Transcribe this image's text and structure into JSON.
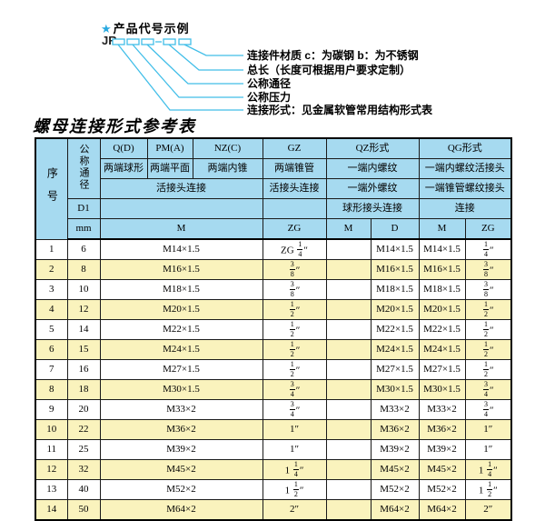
{
  "colors": {
    "accent_cyan": "#41bee8",
    "star_blue": "#29a9e0",
    "header_blue": "#a6daf0",
    "row_yellow": "#faf3bd"
  },
  "diagram": {
    "star": "★",
    "heading": "产品代号示例",
    "prefix": "JR",
    "labels": [
      "连接件材质  c：为碳钢  b：为不锈钢",
      "总长（长度可根据用户要求定制）",
      "公称通径",
      "公称压力",
      "连接形式：见金属软管常用结构形式表"
    ]
  },
  "table": {
    "title": "螺母连接形式参考表",
    "header": {
      "col_no": "序号",
      "col_dn": "公称通径",
      "d1": "D1",
      "mm": "mm",
      "q": "Q(D)",
      "q_desc": "两端球形",
      "pm": "PM(A)",
      "pm_desc": "两端平面",
      "nz": "NZ(C)",
      "nz_desc": "两端内锥",
      "gz": "GZ",
      "gz_desc": "两端锥管",
      "qz": "QZ形式",
      "qz_desc1": "一端内螺纹",
      "qz_desc2": "一端外螺纹",
      "qz_desc3": "球形接头连接",
      "qg": "QG形式",
      "qg_desc1": "一端内螺纹活接头",
      "qg_desc2": "一端锥管螺纹接头",
      "qg_desc3": "连接",
      "union_conn": "活接头连接",
      "union_conn_gz": "活接头连接",
      "m": "M",
      "zg": "ZG",
      "qz_m": "M",
      "qz_d": "D",
      "qg_m": "M",
      "qg_zg": "ZG"
    },
    "rows": [
      {
        "no": "1",
        "dn": "6",
        "m": "M14×1.5",
        "gz": "ZG 1/4″",
        "qz_m": "",
        "qz_d": "M14×1.5",
        "qg_m": "M14×1.5",
        "qg_zg": "1/4″"
      },
      {
        "no": "2",
        "dn": "8",
        "m": "M16×1.5",
        "gz": "3/8″",
        "qz_m": "",
        "qz_d": "M16×1.5",
        "qg_m": "M16×1.5",
        "qg_zg": "3/8″"
      },
      {
        "no": "3",
        "dn": "10",
        "m": "M18×1.5",
        "gz": "3/8″",
        "qz_m": "",
        "qz_d": "M18×1.5",
        "qg_m": "M18×1.5",
        "qg_zg": "3/8″"
      },
      {
        "no": "4",
        "dn": "12",
        "m": "M20×1.5",
        "gz": "1/2″",
        "qz_m": "",
        "qz_d": "M20×1.5",
        "qg_m": "M20×1.5",
        "qg_zg": "1/2″"
      },
      {
        "no": "5",
        "dn": "14",
        "m": "M22×1.5",
        "gz": "1/2″",
        "qz_m": "",
        "qz_d": "M22×1.5",
        "qg_m": "M22×1.5",
        "qg_zg": "1/2″"
      },
      {
        "no": "6",
        "dn": "15",
        "m": "M24×1.5",
        "gz": "1/2″",
        "qz_m": "",
        "qz_d": "M24×1.5",
        "qg_m": "M24×1.5",
        "qg_zg": "1/2″"
      },
      {
        "no": "7",
        "dn": "16",
        "m": "M27×1.5",
        "gz": "1/2″",
        "qz_m": "",
        "qz_d": "M27×1.5",
        "qg_m": "M27×1.5",
        "qg_zg": "1/2″"
      },
      {
        "no": "8",
        "dn": "18",
        "m": "M30×1.5",
        "gz": "3/4″",
        "qz_m": "",
        "qz_d": "M30×1.5",
        "qg_m": "M30×1.5",
        "qg_zg": "3/4″"
      },
      {
        "no": "9",
        "dn": "20",
        "m": "M33×2",
        "gz": "3/4″",
        "qz_m": "",
        "qz_d": "M33×2",
        "qg_m": "M33×2",
        "qg_zg": "3/4″"
      },
      {
        "no": "10",
        "dn": "22",
        "m": "M36×2",
        "gz": "1″",
        "qz_m": "",
        "qz_d": "M36×2",
        "qg_m": "M36×2",
        "qg_zg": "1″"
      },
      {
        "no": "11",
        "dn": "25",
        "m": "M39×2",
        "gz": "1″",
        "qz_m": "",
        "qz_d": "M39×2",
        "qg_m": "M39×2",
        "qg_zg": "1″"
      },
      {
        "no": "12",
        "dn": "32",
        "m": "M45×2",
        "gz": "1 1/4″",
        "qz_m": "",
        "qz_d": "M45×2",
        "qg_m": "M45×2",
        "qg_zg": "1 1/4″"
      },
      {
        "no": "13",
        "dn": "40",
        "m": "M52×2",
        "gz": "1 1/2″",
        "qz_m": "",
        "qz_d": "M52×2",
        "qg_m": "M52×2",
        "qg_zg": "1 1/2″"
      },
      {
        "no": "14",
        "dn": "50",
        "m": "M64×2",
        "gz": "2″",
        "qz_m": "",
        "qz_d": "M64×2",
        "qg_m": "M64×2",
        "qg_zg": "2″"
      }
    ]
  }
}
